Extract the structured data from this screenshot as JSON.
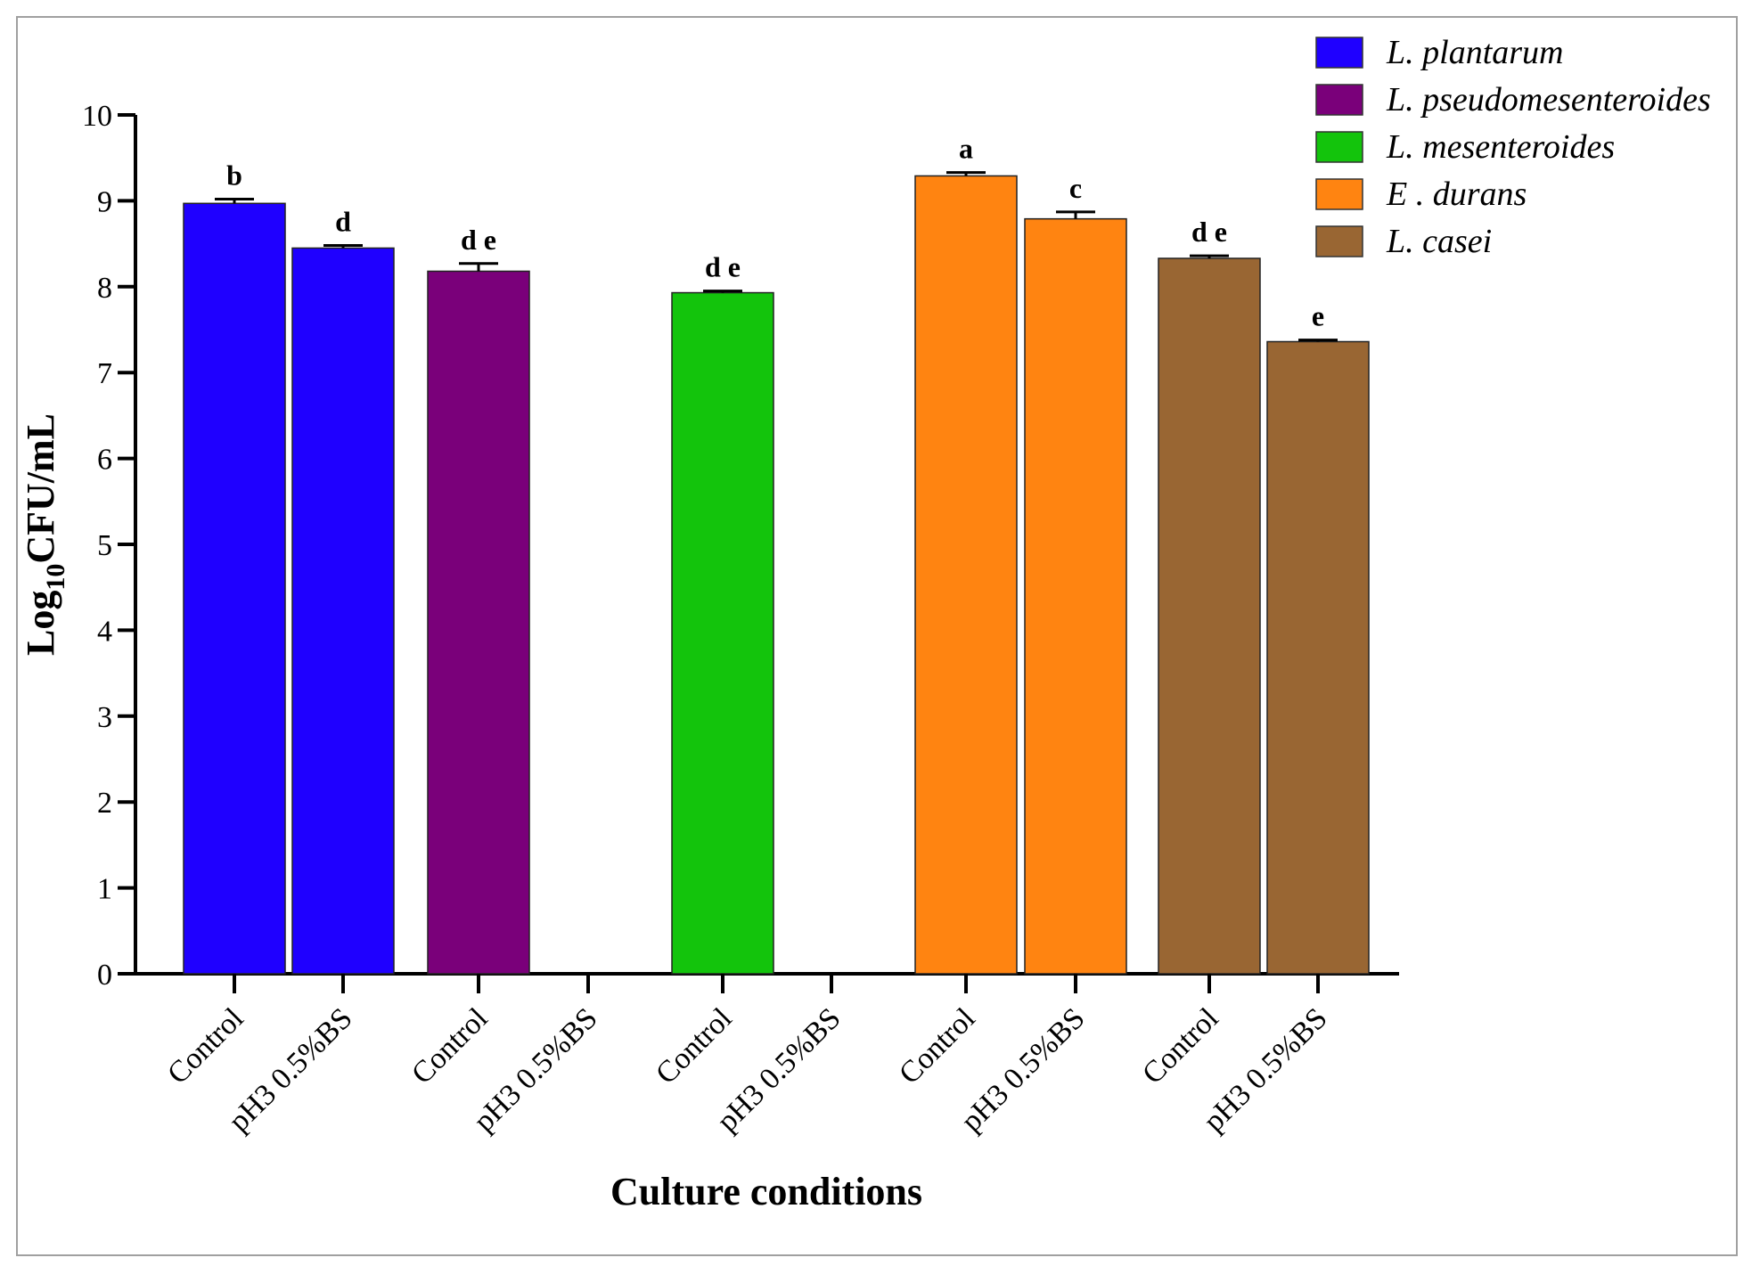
{
  "chart_data": {
    "type": "bar",
    "title": "",
    "xlabel": "Culture conditions",
    "ylabel": "Log10CFU/mL",
    "ylabel_parts": {
      "base": "Log",
      "sub": "10",
      "rest": "CFU/mL"
    },
    "ylim": [
      0,
      10
    ],
    "yticks": [
      "0",
      "1",
      "2",
      "3",
      "4",
      "5",
      "6",
      "7",
      "8",
      "9",
      "10"
    ],
    "grid": false,
    "legend_position": "top-right",
    "categories": [
      "Control",
      "pH3 0.5%BS",
      "Control",
      "pH3 0.5%BS",
      "Control",
      "pH3 0.5%BS",
      "Control",
      "pH3 0.5%BS",
      "Control",
      "pH3 0.5%BS"
    ],
    "series": [
      {
        "name": "L. plantarum",
        "color": "#1f00ff",
        "values": [
          8.97,
          8.45,
          null,
          null,
          null,
          null,
          null,
          null,
          null,
          null
        ],
        "errors": [
          0.05,
          0.03,
          null,
          null,
          null,
          null,
          null,
          null,
          null,
          null
        ]
      },
      {
        "name": "L. pseudomesenteroides",
        "color": "#7a007a",
        "values": [
          null,
          null,
          8.18,
          0,
          null,
          null,
          null,
          null,
          null,
          null
        ],
        "errors": [
          null,
          null,
          0.09,
          null,
          null,
          null,
          null,
          null,
          null,
          null
        ]
      },
      {
        "name": "L. mesenteroides",
        "color": "#13c40c",
        "values": [
          null,
          null,
          null,
          null,
          7.93,
          0,
          null,
          null,
          null,
          null
        ],
        "errors": [
          null,
          null,
          null,
          null,
          0.02,
          null,
          null,
          null,
          null,
          null
        ]
      },
      {
        "name": "E . durans",
        "color": "#ff8411",
        "values": [
          null,
          null,
          null,
          null,
          null,
          null,
          9.29,
          8.79,
          null,
          null
        ],
        "errors": [
          null,
          null,
          null,
          null,
          null,
          null,
          0.04,
          0.08,
          null,
          null
        ]
      },
      {
        "name": "L. casei",
        "color": "#996633",
        "values": [
          null,
          null,
          null,
          null,
          null,
          null,
          null,
          null,
          8.33,
          7.36
        ],
        "errors": [
          null,
          null,
          null,
          null,
          null,
          null,
          null,
          null,
          0.03,
          0.02
        ]
      }
    ],
    "annotations": [
      "b",
      "d",
      "d e",
      "",
      "d e",
      "",
      "a",
      "c",
      "d e",
      "e"
    ]
  }
}
